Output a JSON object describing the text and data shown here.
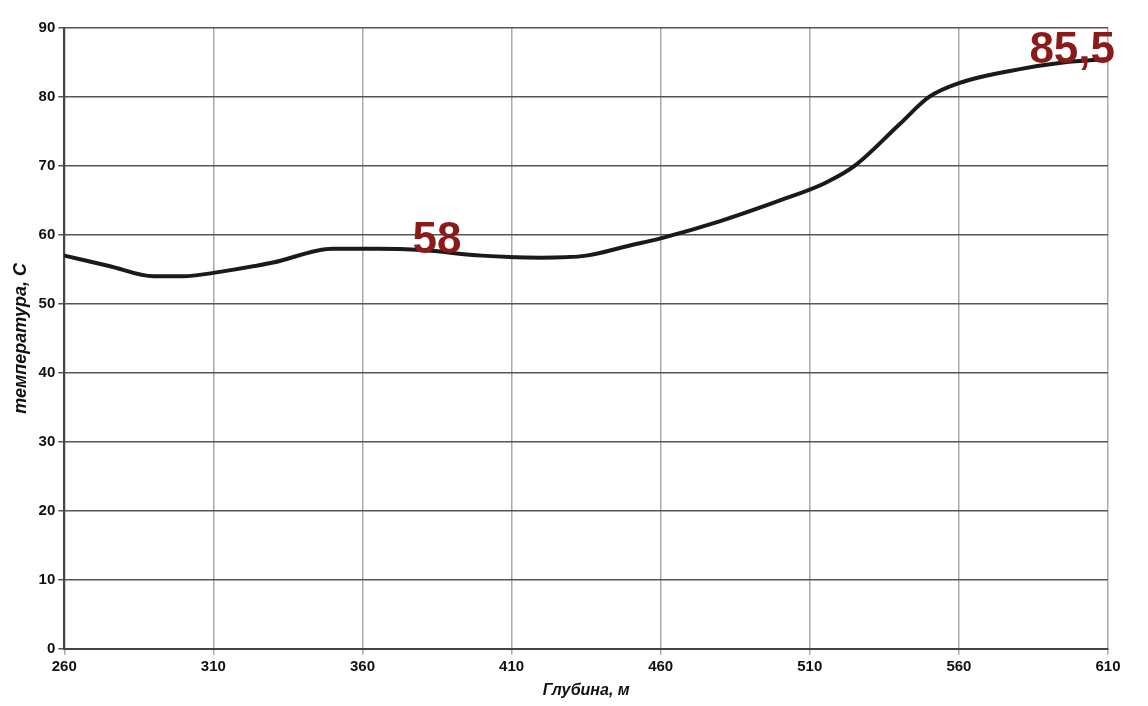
{
  "chart_data": {
    "type": "line",
    "xlabel": "Глубина, м",
    "ylabel": "температура, С",
    "x": [
      260,
      275,
      290,
      300,
      310,
      330,
      350,
      365,
      380,
      400,
      420,
      435,
      450,
      460,
      480,
      500,
      515,
      525,
      540,
      550,
      560,
      580,
      595,
      610
    ],
    "series": [
      {
        "color": "#1a1a1a",
        "values": [
          57,
          55.5,
          54,
          54,
          54.5,
          56,
          58,
          58,
          57.8,
          57,
          56.7,
          57,
          58.5,
          59.5,
          62,
          65,
          67.5,
          70,
          76,
          80,
          82,
          84,
          85,
          85.5
        ]
      }
    ],
    "xlim": [
      260,
      610
    ],
    "xticks": [
      260,
      310,
      360,
      410,
      460,
      510,
      560,
      610
    ],
    "ylim": [
      0,
      90
    ],
    "yticks": [
      0,
      10,
      20,
      30,
      40,
      50,
      60,
      70,
      80,
      90
    ],
    "grid": true,
    "legend": false,
    "marker": "none",
    "line_style": "solid",
    "annotations": [
      {
        "text": "58",
        "x": 385,
        "y": 58
      },
      {
        "text": "85,5",
        "x": 598,
        "y": 85.5
      }
    ]
  }
}
